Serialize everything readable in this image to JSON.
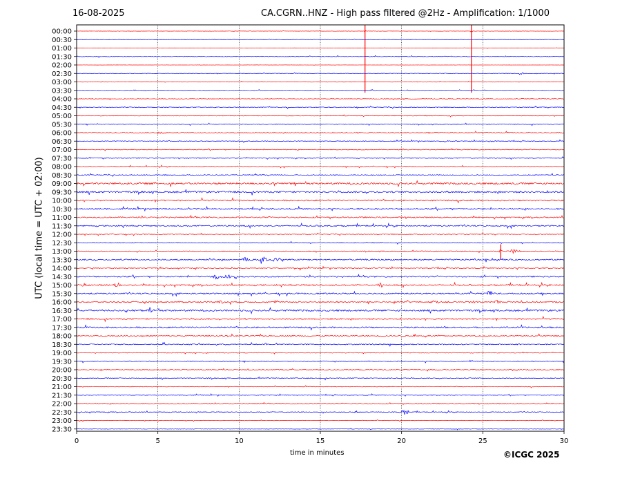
{
  "header": {
    "date": "16-08-2025",
    "title": "CA.CGRN..HNZ - High pass filtered @2Hz - Amplification: 1/1000"
  },
  "footer": {
    "copyright": "©ICGC 2025"
  },
  "chart_data": {
    "type": "line",
    "title": "CA.CGRN..HNZ - High pass filtered @2Hz - Amplification: 1/1000",
    "xlabel": "time in minutes",
    "ylabel": "UTC (local time = UTC + 02:00)",
    "xlim": [
      0,
      30
    ],
    "x_ticks": [
      "0",
      "5",
      "10",
      "15",
      "20",
      "25",
      "30"
    ],
    "grid": "vertical dotted lines at 5-minute ticks",
    "rows": [
      "00:00",
      "00:30",
      "01:00",
      "01:30",
      "02:00",
      "02:30",
      "03:00",
      "03:30",
      "04:00",
      "04:30",
      "05:00",
      "05:30",
      "06:00",
      "06:30",
      "07:00",
      "07:30",
      "08:00",
      "08:30",
      "09:00",
      "09:30",
      "10:00",
      "10:30",
      "11:00",
      "11:30",
      "12:00",
      "12:30",
      "13:00",
      "13:30",
      "14:00",
      "14:30",
      "15:00",
      "15:30",
      "16:00",
      "16:30",
      "17:00",
      "17:30",
      "18:00",
      "18:30",
      "19:00",
      "19:30",
      "20:00",
      "20:30",
      "21:00",
      "21:30",
      "22:00",
      "22:30",
      "23:00",
      "23:30"
    ],
    "colors": {
      "even_rows": "#ff0000",
      "odd_rows": "#0000ff"
    },
    "noise_level": [
      0.2,
      0.2,
      0.2,
      0.4,
      0.1,
      0.3,
      0.3,
      0.3,
      0.4,
      0.5,
      0.4,
      0.5,
      0.5,
      0.5,
      0.5,
      0.5,
      0.5,
      0.6,
      1.2,
      1.2,
      0.9,
      0.9,
      0.8,
      0.9,
      0.5,
      0.5,
      0.5,
      0.9,
      0.6,
      0.9,
      0.9,
      0.9,
      0.9,
      1.2,
      0.9,
      0.9,
      0.7,
      0.7,
      0.5,
      0.6,
      0.6,
      0.6,
      0.4,
      0.5,
      0.5,
      0.5,
      0.3,
      0.3
    ],
    "events": [
      {
        "row": "00:00",
        "minute": 17.75,
        "amplitude": 8,
        "duration": 0.05
      },
      {
        "row": "00:00",
        "minute": 24.3,
        "amplitude": 8,
        "duration": 0.05
      },
      {
        "row": "02:30",
        "minute": 27.4,
        "amplitude": 2,
        "duration": 0.2
      },
      {
        "row": "04:00",
        "minute": 27.5,
        "amplitude": 2,
        "duration": 0.2
      },
      {
        "row": "04:30",
        "minute": 17.3,
        "amplitude": 2,
        "duration": 0.15
      },
      {
        "row": "06:00",
        "minute": 5.2,
        "amplitude": 1.5,
        "duration": 0.4
      },
      {
        "row": "06:30",
        "minute": 22.7,
        "amplitude": 1.5,
        "duration": 0.4
      },
      {
        "row": "06:30",
        "minute": 25.6,
        "amplitude": 1.5,
        "duration": 0.4
      },
      {
        "row": "13:00",
        "minute": 26.1,
        "amplitude": 6,
        "duration": 0.1
      },
      {
        "row": "13:00",
        "minute": 26.9,
        "amplitude": 4,
        "duration": 0.5
      },
      {
        "row": "13:30",
        "minute": 8.3,
        "amplitude": 3,
        "duration": 0.3
      },
      {
        "row": "13:30",
        "minute": 10.4,
        "amplitude": 4,
        "duration": 0.5
      },
      {
        "row": "13:30",
        "minute": 11.5,
        "amplitude": 4,
        "duration": 0.5
      },
      {
        "row": "13:30",
        "minute": 12.4,
        "amplitude": 4,
        "duration": 0.5
      },
      {
        "row": "14:00",
        "minute": 13.8,
        "amplitude": 3,
        "duration": 0.2
      },
      {
        "row": "14:30",
        "minute": 8.6,
        "amplitude": 4,
        "duration": 0.4
      },
      {
        "row": "14:30",
        "minute": 9.2,
        "amplitude": 4,
        "duration": 0.4
      },
      {
        "row": "14:30",
        "minute": 9.8,
        "amplitude": 3,
        "duration": 0.3
      },
      {
        "row": "15:00",
        "minute": 0.4,
        "amplitude": 4,
        "duration": 0.3
      },
      {
        "row": "15:00",
        "minute": 2.5,
        "amplitude": 4,
        "duration": 0.3
      },
      {
        "row": "15:00",
        "minute": 18.7,
        "amplitude": 4,
        "duration": 0.3
      },
      {
        "row": "15:30",
        "minute": 25.5,
        "amplitude": 4,
        "duration": 0.3
      },
      {
        "row": "16:00",
        "minute": 8.9,
        "amplitude": 4,
        "duration": 0.3
      },
      {
        "row": "16:00",
        "minute": 20.4,
        "amplitude": 3,
        "duration": 0.3
      },
      {
        "row": "16:00",
        "minute": 22.1,
        "amplitude": 3,
        "duration": 0.3
      },
      {
        "row": "16:00",
        "minute": 24.4,
        "amplitude": 4,
        "duration": 0.3
      },
      {
        "row": "16:00",
        "minute": 25.9,
        "amplitude": 3,
        "duration": 0.3
      },
      {
        "row": "16:30",
        "minute": 3.1,
        "amplitude": 3,
        "duration": 0.2
      },
      {
        "row": "16:30",
        "minute": 4.6,
        "amplitude": 5,
        "duration": 0.4
      },
      {
        "row": "17:30",
        "minute": 22.7,
        "amplitude": 3,
        "duration": 0.15
      },
      {
        "row": "20:00",
        "minute": 27.0,
        "amplitude": 3,
        "duration": 0.3
      },
      {
        "row": "22:30",
        "minute": 17.2,
        "amplitude": 2,
        "duration": 0.4
      },
      {
        "row": "22:30",
        "minute": 20.2,
        "amplitude": 5,
        "duration": 0.4
      }
    ]
  }
}
